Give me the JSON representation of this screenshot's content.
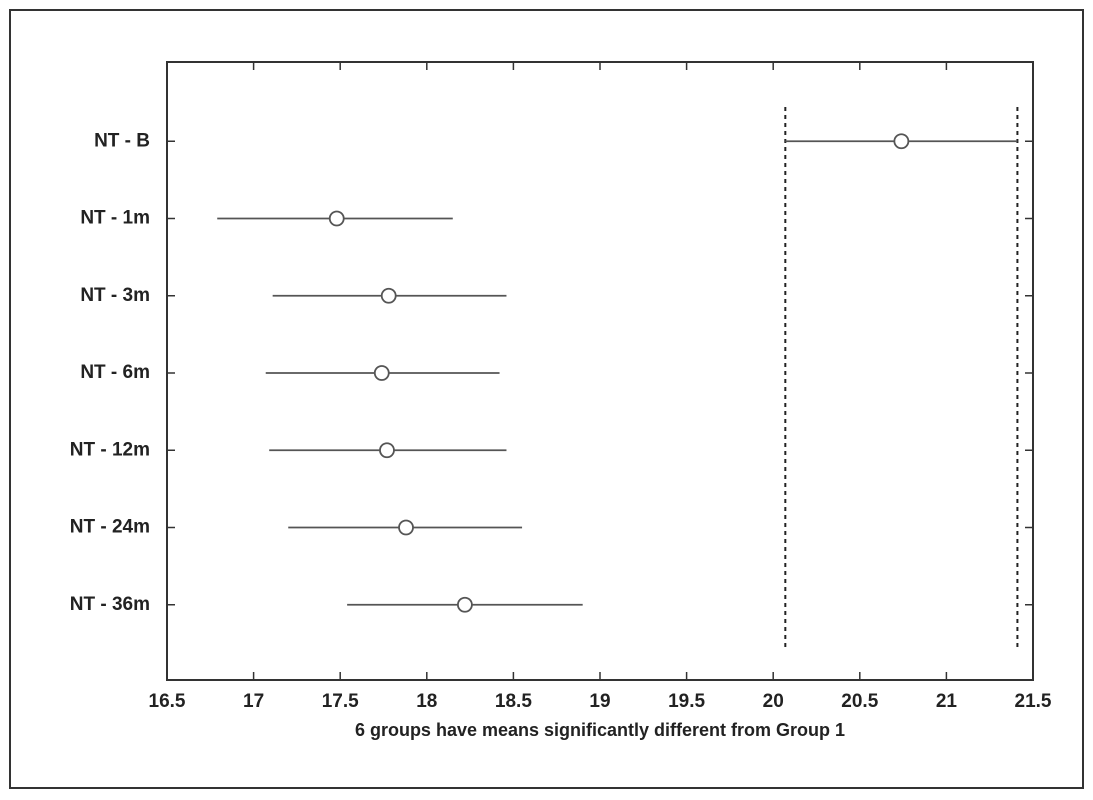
{
  "chart_data": {
    "type": "interval",
    "xlabel": "6 groups have means significantly different from Group 1",
    "categories": [
      "NT - B",
      "NT - 1m",
      "NT - 3m",
      "NT - 6m",
      "NT - 12m",
      "NT - 24m",
      "NT - 36m"
    ],
    "values": [
      20.74,
      17.48,
      17.78,
      17.74,
      17.77,
      17.88,
      18.22
    ],
    "low": [
      20.07,
      16.79,
      17.11,
      17.07,
      17.09,
      17.2,
      17.54
    ],
    "high": [
      21.41,
      18.15,
      18.46,
      18.42,
      18.46,
      18.55,
      18.9
    ],
    "color": "#555555",
    "xlim": [
      16.5,
      21.5
    ],
    "xticks": [
      16.5,
      17,
      17.5,
      18,
      18.5,
      19,
      19.5,
      20,
      20.5,
      21,
      21.5
    ]
  }
}
